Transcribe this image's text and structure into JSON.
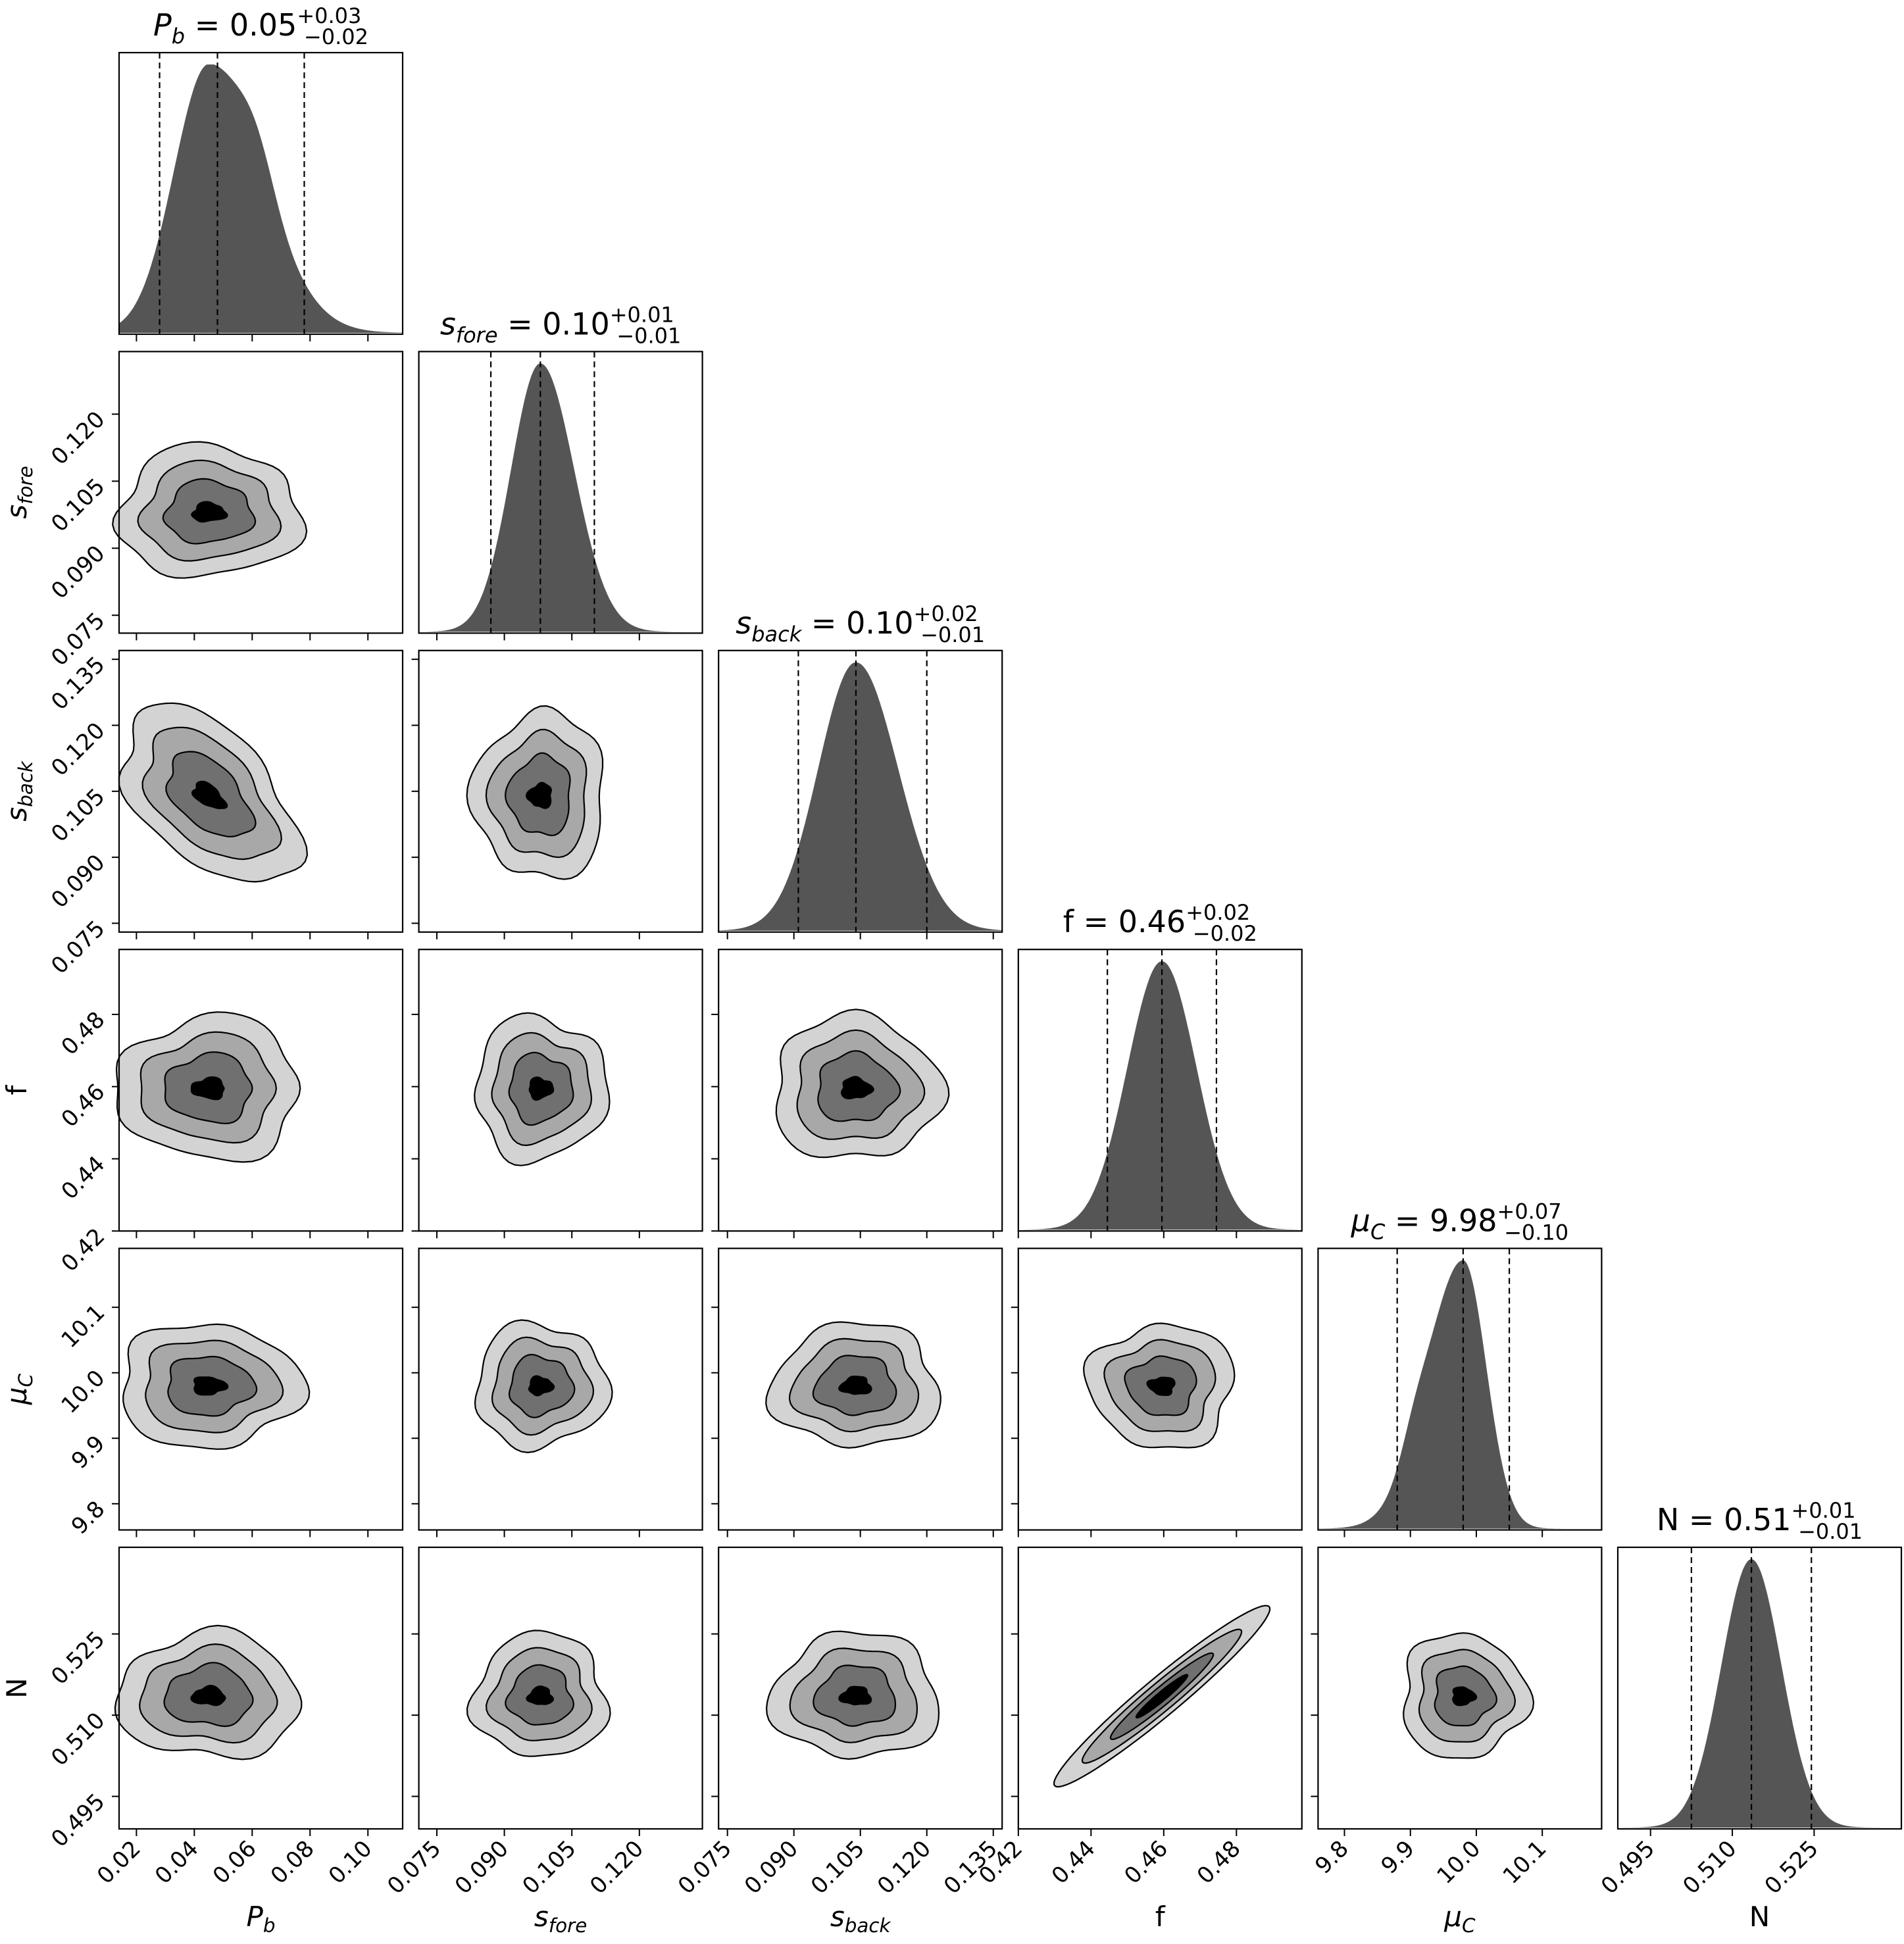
{
  "chart_data": {
    "type": "corner",
    "colors": {
      "hist": "#555555",
      "levels": [
        "#d3d3d3",
        "#a8a8a8",
        "#707070",
        "#000000"
      ]
    },
    "parameters": [
      {
        "id": "pb",
        "label": "P_b",
        "title": "P_b = 0.05^{+0.03}_{-0.02}",
        "median": 0.05,
        "err_plus": 0.03,
        "err_minus": 0.02,
        "range": [
          0.014,
          0.112
        ],
        "ticks": [
          "0.02",
          "0.04",
          "0.06",
          "0.08",
          "0.10"
        ],
        "peak": 0.045,
        "sigma_left": 0.012,
        "sigma_right": 0.018
      },
      {
        "id": "sfore",
        "label": "s_fore",
        "title": "s_fore = 0.10^{+0.01}_{-0.01}",
        "median": 0.1,
        "err_plus": 0.01,
        "err_minus": 0.01,
        "range": [
          0.071,
          0.134
        ],
        "ticks": [
          "0.075",
          "0.090",
          "0.105",
          "0.120"
        ],
        "peak": 0.098,
        "sigma_left": 0.0065,
        "sigma_right": 0.0075
      },
      {
        "id": "sback",
        "label": "s_back",
        "title": "s_back = 0.10^{+0.02}_{-0.01}",
        "median": 0.1,
        "err_plus": 0.02,
        "err_minus": 0.01,
        "range": [
          0.073,
          0.137
        ],
        "ticks": [
          "0.075",
          "0.090",
          "0.105",
          "0.120",
          "0.135"
        ],
        "peak": 0.104,
        "sigma_left": 0.0085,
        "sigma_right": 0.0095
      },
      {
        "id": "f",
        "label": "f",
        "title": "f = 0.46^{+0.02}_{-0.02}",
        "median": 0.46,
        "err_plus": 0.02,
        "err_minus": 0.02,
        "range": [
          0.42,
          0.498
        ],
        "ticks": [
          "0.42",
          "0.44",
          "0.46",
          "0.48"
        ],
        "peak": 0.4595,
        "sigma_left": 0.0095,
        "sigma_right": 0.0095
      },
      {
        "id": "muc",
        "label": "μ_C",
        "title": "μ_C = 9.98^{+0.07}_{-0.10}",
        "median": 9.98,
        "err_plus": 0.07,
        "err_minus": 0.1,
        "range": [
          9.76,
          10.19
        ],
        "ticks": [
          "9.8",
          "9.9",
          "10.0",
          "10.1"
        ],
        "peak": 9.98,
        "sigma_left": 0.055,
        "sigma_right": 0.035
      },
      {
        "id": "n",
        "label": "N",
        "title": "N = 0.51^{+0.01}_{-0.01}",
        "median": 0.51,
        "err_plus": 0.01,
        "err_minus": 0.01,
        "range": [
          0.489,
          0.541
        ],
        "ticks": [
          "0.495",
          "0.510",
          "0.525"
        ],
        "peak": 0.5135,
        "sigma_left": 0.0055,
        "sigma_right": 0.0055
      }
    ],
    "quantile_lines": [
      [
        0.028,
        0.048,
        0.078
      ],
      [
        0.087,
        0.098,
        0.11
      ],
      [
        0.091,
        0.104,
        0.12
      ],
      [
        0.4445,
        0.4595,
        0.4745
      ],
      [
        9.88,
        9.98,
        10.05
      ],
      [
        0.5025,
        0.5135,
        0.5245
      ]
    ],
    "correlation_f_N": 0.98
  }
}
